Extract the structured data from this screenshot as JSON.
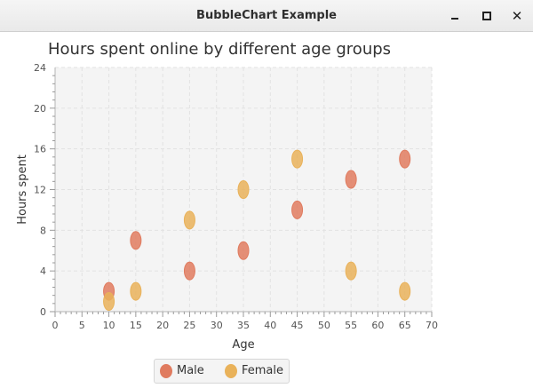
{
  "window": {
    "title": "BubbleChart Example",
    "controls": {
      "minimize": "minimize-icon",
      "maximize": "maximize-icon",
      "close": "close-icon"
    }
  },
  "colors": {
    "male": "#e07b5f",
    "female": "#e9b25a",
    "plot_bg": "#f4f4f4",
    "grid": "#e2e2e2"
  },
  "chart_data": {
    "type": "scatter",
    "subtype": "bubble",
    "title": "Hours spent online by different age groups",
    "xlabel": "Age",
    "ylabel": "Hours spent",
    "xlim": [
      0,
      70
    ],
    "ylim": [
      0,
      24
    ],
    "xticks": [
      "0",
      "5",
      "10",
      "15",
      "20",
      "25",
      "30",
      "35",
      "40",
      "45",
      "50",
      "55",
      "60",
      "65",
      "70"
    ],
    "yticks": [
      "0",
      "4",
      "8",
      "12",
      "16",
      "20",
      "24"
    ],
    "grid": true,
    "legend": "bottom",
    "series": [
      {
        "name": "Male",
        "color": "#e07b5f",
        "points": [
          {
            "x": 10,
            "y": 2
          },
          {
            "x": 15,
            "y": 7
          },
          {
            "x": 25,
            "y": 4
          },
          {
            "x": 35,
            "y": 6
          },
          {
            "x": 45,
            "y": 10
          },
          {
            "x": 55,
            "y": 13
          },
          {
            "x": 65,
            "y": 15
          }
        ]
      },
      {
        "name": "Female",
        "color": "#e9b25a",
        "points": [
          {
            "x": 10,
            "y": 1
          },
          {
            "x": 15,
            "y": 2
          },
          {
            "x": 25,
            "y": 9
          },
          {
            "x": 35,
            "y": 12
          },
          {
            "x": 45,
            "y": 15
          },
          {
            "x": 55,
            "y": 4
          },
          {
            "x": 65,
            "y": 2
          }
        ]
      }
    ]
  }
}
